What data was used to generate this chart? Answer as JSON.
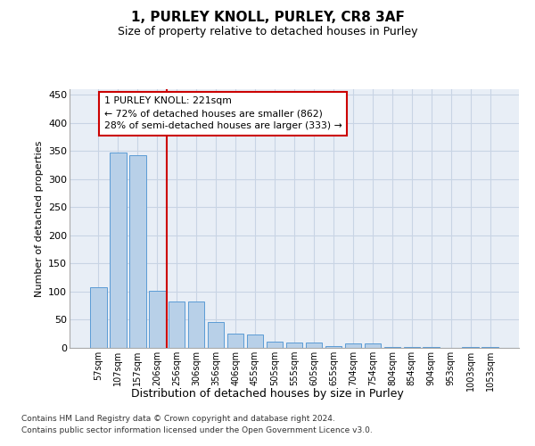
{
  "title": "1, PURLEY KNOLL, PURLEY, CR8 3AF",
  "subtitle": "Size of property relative to detached houses in Purley",
  "xlabel": "Distribution of detached houses by size in Purley",
  "ylabel": "Number of detached properties",
  "categories": [
    "57sqm",
    "107sqm",
    "157sqm",
    "206sqm",
    "256sqm",
    "306sqm",
    "356sqm",
    "406sqm",
    "455sqm",
    "505sqm",
    "555sqm",
    "605sqm",
    "655sqm",
    "704sqm",
    "754sqm",
    "804sqm",
    "854sqm",
    "904sqm",
    "953sqm",
    "1003sqm",
    "1053sqm"
  ],
  "values": [
    108,
    347,
    343,
    101,
    82,
    82,
    46,
    26,
    24,
    11,
    10,
    10,
    3,
    8,
    8,
    2,
    2,
    1,
    0,
    2,
    2
  ],
  "bar_color": "#b8d0e8",
  "bar_edge_color": "#5b9bd5",
  "grid_color": "#c8d4e4",
  "background_color": "#e8eef6",
  "vline_x": 3.5,
  "vline_color": "#cc0000",
  "annotation_line1": "1 PURLEY KNOLL: 221sqm",
  "annotation_line2": "← 72% of detached houses are smaller (862)",
  "annotation_line3": "28% of semi-detached houses are larger (333) →",
  "footer_line1": "Contains HM Land Registry data © Crown copyright and database right 2024.",
  "footer_line2": "Contains public sector information licensed under the Open Government Licence v3.0.",
  "ylim": [
    0,
    460
  ],
  "yticks": [
    0,
    50,
    100,
    150,
    200,
    250,
    300,
    350,
    400,
    450
  ]
}
